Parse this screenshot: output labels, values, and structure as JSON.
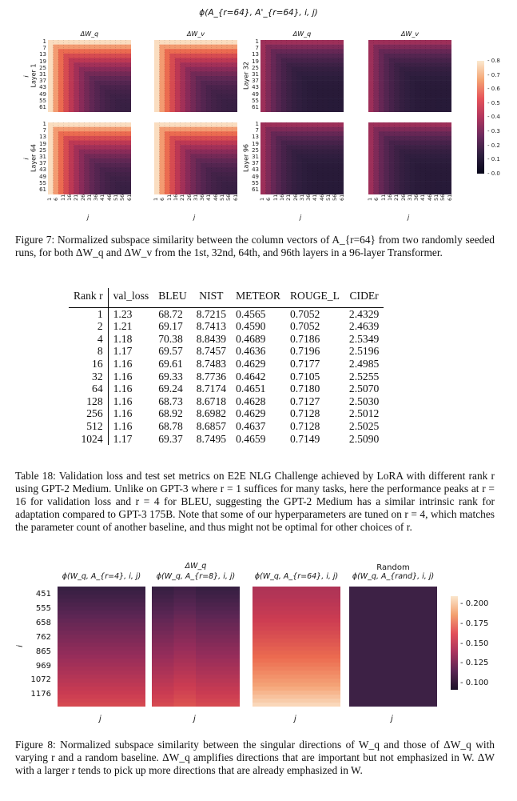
{
  "fig7": {
    "suptitle": "ϕ(A_{r=64}, A'_{r=64}, i, j)",
    "col_titles": [
      "ΔW_q",
      "ΔW_v",
      "ΔW_q",
      "ΔW_v"
    ],
    "row_labels": [
      "Layer 1",
      "Layer 32",
      "Layer 64",
      "Layer 96"
    ],
    "ylabel": "i",
    "xlabel": "j",
    "ticks": [
      "1",
      "7",
      "13",
      "19",
      "25",
      "31",
      "37",
      "43",
      "49",
      "55",
      "61"
    ],
    "xticks": [
      "1",
      "6",
      "11",
      "16",
      "21",
      "26",
      "31",
      "36",
      "41",
      "46",
      "51",
      "56",
      "61"
    ],
    "colorbar_ticks": [
      "0.8",
      "0.7",
      "0.6",
      "0.5",
      "0.4",
      "0.3",
      "0.2",
      "0.1",
      "0.0"
    ],
    "caption_label": "Figure 7:",
    "caption": "Normalized subspace similarity between the column vectors of A_{r=64} from two randomly seeded runs, for both ΔW_q and ΔW_v from the 1st, 32nd, 64th, and 96th layers in a 96-layer Transformer."
  },
  "table": {
    "headers": [
      "Rank r",
      "val_loss",
      "BLEU",
      "NIST",
      "METEOR",
      "ROUGE_L",
      "CIDEr"
    ],
    "rows": [
      [
        "1",
        "1.23",
        "68.72",
        "8.7215",
        "0.4565",
        "0.7052",
        "2.4329"
      ],
      [
        "2",
        "1.21",
        "69.17",
        "8.7413",
        "0.4590",
        "0.7052",
        "2.4639"
      ],
      [
        "4",
        "1.18",
        "70.38",
        "8.8439",
        "0.4689",
        "0.7186",
        "2.5349"
      ],
      [
        "8",
        "1.17",
        "69.57",
        "8.7457",
        "0.4636",
        "0.7196",
        "2.5196"
      ],
      [
        "16",
        "1.16",
        "69.61",
        "8.7483",
        "0.4629",
        "0.7177",
        "2.4985"
      ],
      [
        "32",
        "1.16",
        "69.33",
        "8.7736",
        "0.4642",
        "0.7105",
        "2.5255"
      ],
      [
        "64",
        "1.16",
        "69.24",
        "8.7174",
        "0.4651",
        "0.7180",
        "2.5070"
      ],
      [
        "128",
        "1.16",
        "68.73",
        "8.6718",
        "0.4628",
        "0.7127",
        "2.5030"
      ],
      [
        "256",
        "1.16",
        "68.92",
        "8.6982",
        "0.4629",
        "0.7128",
        "2.5012"
      ],
      [
        "512",
        "1.16",
        "68.78",
        "8.6857",
        "0.4637",
        "0.7128",
        "2.5025"
      ],
      [
        "1024",
        "1.17",
        "69.37",
        "8.7495",
        "0.4659",
        "0.7149",
        "2.5090"
      ]
    ],
    "bold": [
      [
        2,
        2
      ],
      [
        2,
        3
      ],
      [
        2,
        4
      ],
      [
        2,
        6
      ],
      [
        3,
        5
      ],
      [
        4,
        1
      ],
      [
        5,
        1
      ],
      [
        6,
        1
      ],
      [
        7,
        1
      ],
      [
        8,
        1
      ],
      [
        9,
        1
      ]
    ],
    "caption_label": "Table 18:",
    "caption": "Validation loss and test set metrics on E2E NLG Challenge achieved by LoRA with different rank r using GPT-2 Medium. Unlike on GPT-3 where r = 1 suffices for many tasks, here the performance peaks at r = 16 for validation loss and r = 4 for BLEU, suggesting the GPT-2 Medium has a similar intrinsic rank for adaptation compared to GPT-3 175B. Note that some of our hyperparameters are tuned on r = 4, which matches the parameter count of another baseline, and thus might not be optimal for other choices of r."
  },
  "fig8": {
    "group_titles": [
      "ΔW_q",
      "Random"
    ],
    "panel_titles": [
      "ϕ(W_q, A_{r=4}, i, j)",
      "ϕ(W_q, A_{r=8}, i, j)",
      "ϕ(W_q, A_{r=64}, i, j)",
      "ϕ(W_q, A_{rand}, i, j)"
    ],
    "yticks": [
      "451",
      "555",
      "658",
      "762",
      "865",
      "969",
      "1072",
      "1176"
    ],
    "ylabel": "i",
    "xlabel": "j",
    "colorbar_ticks": [
      "0.200",
      "0.175",
      "0.150",
      "0.125",
      "0.100"
    ],
    "caption_label": "Figure 8:",
    "caption": "Normalized subspace similarity between the singular directions of W_q and those of ΔW_q with varying r and a random baseline. ΔW_q amplifies directions that are important but not emphasized in W. ΔW with a larger r tends to pick up more directions that are already emphasized in W."
  }
}
